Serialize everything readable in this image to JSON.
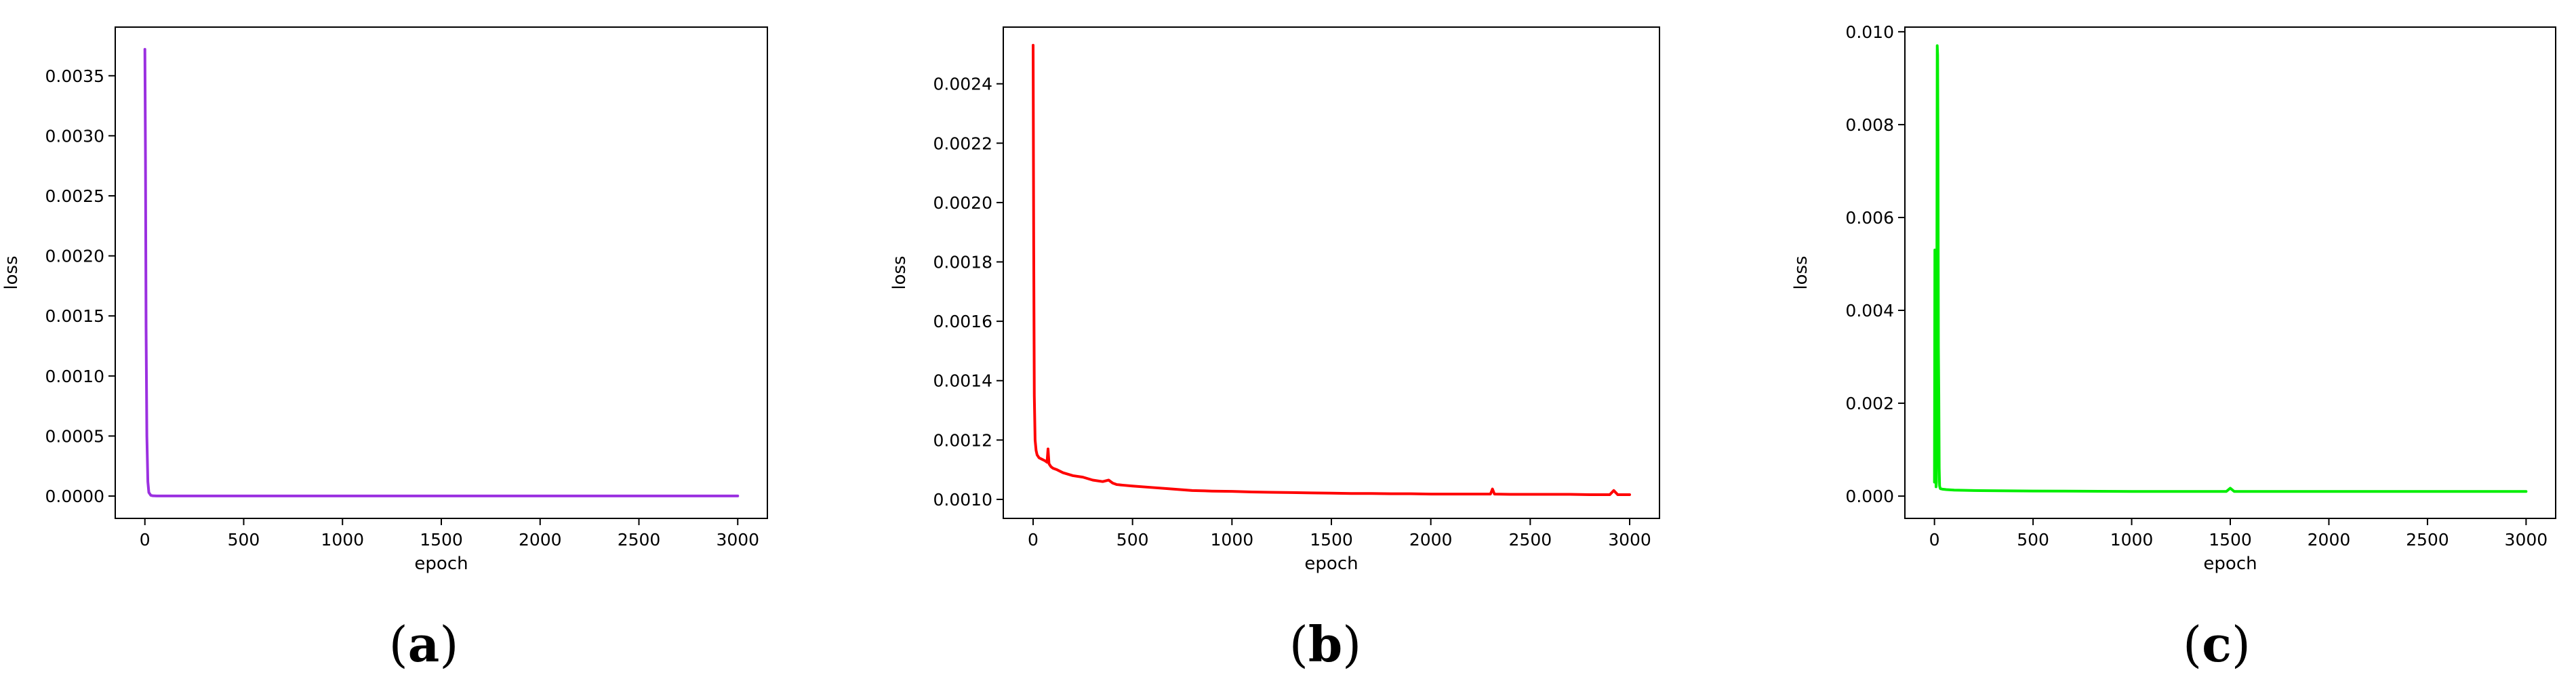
{
  "charts": [
    {
      "caption": "a",
      "chart_data": {
        "type": "line",
        "xlabel": "epoch",
        "ylabel": "loss",
        "xlim": [
          -150,
          3150
        ],
        "ylim": [
          -0.000186,
          0.003905
        ],
        "xticks": [
          0,
          500,
          1000,
          1500,
          2000,
          2500,
          3000
        ],
        "xtick_labels": [
          "0",
          "500",
          "1000",
          "1500",
          "2000",
          "2500",
          "3000"
        ],
        "yticks": [
          0.0,
          0.0005,
          0.001,
          0.0015,
          0.002,
          0.0025,
          0.003,
          0.0035
        ],
        "ytick_labels": [
          "0.0000",
          "0.0005",
          "0.0010",
          "0.0015",
          "0.0020",
          "0.0025",
          "0.0030",
          "0.0035"
        ],
        "grid": false,
        "color": "#9b30e0",
        "x": [
          0,
          3,
          6,
          10,
          15,
          20,
          30,
          40,
          60,
          100,
          200,
          500,
          1000,
          1500,
          2000,
          2500,
          3000
        ],
        "y": [
          0.00372,
          0.0028,
          0.0014,
          0.0005,
          0.00012,
          3e-05,
          6e-06,
          2e-06,
          1e-06,
          1e-06,
          1e-06,
          1e-06,
          1e-06,
          1e-06,
          1e-06,
          1e-06,
          1e-06
        ]
      }
    },
    {
      "caption": "b",
      "chart_data": {
        "type": "line",
        "xlabel": "epoch",
        "ylabel": "loss",
        "xlim": [
          -150,
          3150
        ],
        "ylim": [
          0.000936,
          0.002591
        ],
        "xticks": [
          0,
          500,
          1000,
          1500,
          2000,
          2500,
          3000
        ],
        "xtick_labels": [
          "0",
          "500",
          "1000",
          "1500",
          "2000",
          "2500",
          "3000"
        ],
        "yticks": [
          0.001,
          0.0012,
          0.0014,
          0.0016,
          0.0018,
          0.002,
          0.0022,
          0.0024
        ],
        "ytick_labels": [
          "0.0010",
          "0.0012",
          "0.0014",
          "0.0016",
          "0.0018",
          "0.0020",
          "0.0022",
          "0.0024"
        ],
        "grid": false,
        "color": "#ff0000",
        "x": [
          0,
          3,
          6,
          10,
          15,
          20,
          30,
          45,
          60,
          70,
          75,
          80,
          85,
          90,
          100,
          120,
          150,
          200,
          250,
          300,
          350,
          380,
          400,
          420,
          450,
          500,
          600,
          700,
          800,
          900,
          1000,
          1100,
          1200,
          1300,
          1400,
          1500,
          1600,
          1700,
          1800,
          1900,
          2000,
          2100,
          2200,
          2300,
          2310,
          2320,
          2400,
          2500,
          2600,
          2700,
          2800,
          2900,
          2920,
          2940,
          3000
        ],
        "y": [
          0.00253,
          0.00185,
          0.00135,
          0.0012,
          0.001165,
          0.00115,
          0.00114,
          0.001135,
          0.00113,
          0.001125,
          0.00117,
          0.00112,
          0.001115,
          0.00111,
          0.001105,
          0.0011,
          0.00109,
          0.00108,
          0.001075,
          0.001065,
          0.00106,
          0.001065,
          0.001055,
          0.00105,
          0.001048,
          0.001045,
          0.00104,
          0.001035,
          0.00103,
          0.001028,
          0.001027,
          0.001025,
          0.001024,
          0.001023,
          0.001022,
          0.001021,
          0.00102,
          0.00102,
          0.001019,
          0.001019,
          0.001018,
          0.001018,
          0.001018,
          0.001018,
          0.001035,
          0.001018,
          0.001017,
          0.001017,
          0.001017,
          0.001017,
          0.001016,
          0.001016,
          0.00103,
          0.001016,
          0.001016
        ]
      }
    },
    {
      "caption": "c",
      "chart_data": {
        "type": "line",
        "xlabel": "epoch",
        "ylabel": "loss",
        "xlim": [
          -150,
          3150
        ],
        "ylim": [
          -0.00048,
          0.0101
        ],
        "xticks": [
          0,
          500,
          1000,
          1500,
          2000,
          2500,
          3000
        ],
        "xtick_labels": [
          "0",
          "500",
          "1000",
          "1500",
          "2000",
          "2500",
          "3000"
        ],
        "yticks": [
          0.0,
          0.002,
          0.004,
          0.006,
          0.008,
          0.01
        ],
        "ytick_labels": [
          "0.000",
          "0.002",
          "0.004",
          "0.006",
          "0.008",
          "0.010"
        ],
        "grid": false,
        "color": "#00ee00",
        "x": [
          0,
          2,
          4,
          6,
          8,
          10,
          12,
          14,
          16,
          18,
          20,
          22,
          24,
          26,
          28,
          30,
          40,
          60,
          100,
          200,
          500,
          1000,
          1480,
          1500,
          1520,
          2000,
          2500,
          3000
        ],
        "y": [
          0.0003,
          0.0053,
          0.0051,
          0.0009,
          0.0002,
          0.0003,
          0.0045,
          0.0097,
          0.0095,
          0.0075,
          0.0032,
          0.0022,
          0.0006,
          0.00022,
          0.00018,
          0.00016,
          0.00015,
          0.00014,
          0.00013,
          0.00012,
          0.00011,
          0.0001,
          0.0001,
          0.00017,
          0.0001,
          0.0001,
          0.0001,
          0.0001
        ]
      }
    }
  ]
}
